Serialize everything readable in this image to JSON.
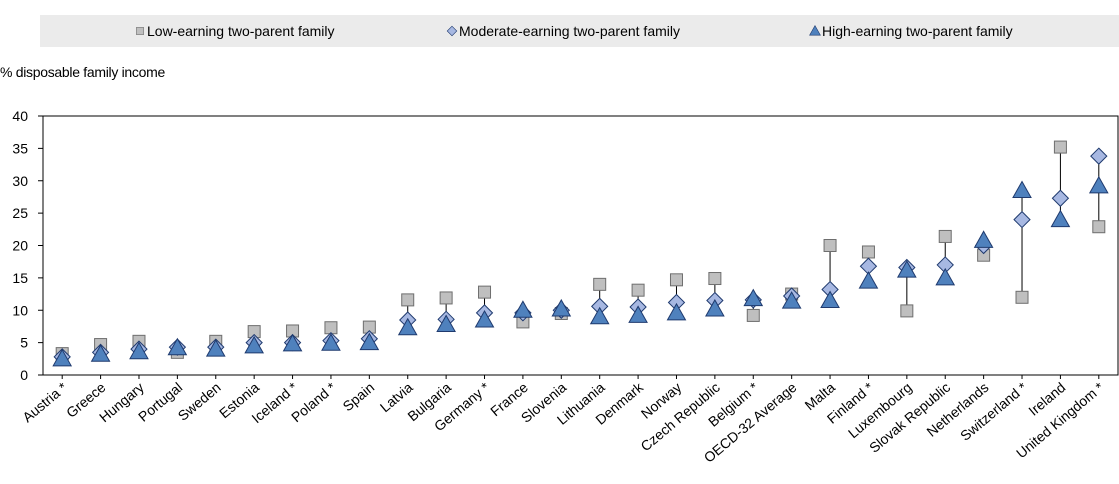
{
  "chart_data": {
    "type": "dot-range",
    "y_label": "% disposable family income",
    "categories": [
      "Austria *",
      "Greece",
      "Hungary",
      "Portugal",
      "Sweden",
      "Estonia",
      "Iceland *",
      "Poland *",
      "Spain",
      "Latvia",
      "Bulgaria",
      "Germany *",
      "France",
      "Slovenia",
      "Lithuania",
      "Denmark",
      "Norway",
      "Czech Republic",
      "Belgium *",
      "OECD-32 Average",
      "Malta",
      "Finland *",
      "Luxembourg",
      "Slovak Republic",
      "Netherlands",
      "Switzerland *",
      "Ireland",
      "United Kingdom *"
    ],
    "series": [
      {
        "name": "Low-earning two-parent family",
        "marker": "square",
        "color": "#bfbfbf",
        "stroke": "#6e6e6e",
        "values": [
          3.3,
          4.7,
          5.2,
          3.5,
          5.2,
          6.7,
          6.8,
          7.3,
          7.4,
          11.6,
          11.9,
          12.8,
          8.2,
          9.5,
          14.0,
          13.1,
          14.7,
          14.9,
          9.2,
          12.5,
          20.0,
          19.0,
          9.9,
          21.4,
          18.5,
          12.0,
          35.2,
          22.9
        ]
      },
      {
        "name": "Moderate-earning two-parent family",
        "marker": "diamond",
        "color": "#a7b8e2",
        "stroke": "#1f3a6e",
        "values": [
          2.8,
          3.5,
          4.0,
          4.3,
          4.3,
          5.0,
          5.0,
          5.3,
          5.6,
          8.5,
          8.6,
          9.6,
          9.6,
          10.0,
          10.6,
          10.5,
          11.2,
          11.5,
          11.6,
          12.2,
          13.2,
          16.8,
          16.6,
          17.0,
          20.0,
          24.0,
          27.3,
          33.8
        ]
      },
      {
        "name": "High-earning two-parent family",
        "marker": "triangle",
        "color": "#4f81bd",
        "stroke": "#1f3a6e",
        "values": [
          2.5,
          3.2,
          3.6,
          4.2,
          4.0,
          4.5,
          4.8,
          4.9,
          5.0,
          7.3,
          7.8,
          8.5,
          10.0,
          10.2,
          9.0,
          9.2,
          9.6,
          10.2,
          11.8,
          11.4,
          11.5,
          14.5,
          16.2,
          15.0,
          20.8,
          28.5,
          24.0,
          29.2
        ]
      }
    ],
    "ylim": [
      0,
      40
    ],
    "yticks": [
      0,
      5,
      10,
      15,
      20,
      25,
      30,
      35,
      40
    ],
    "range_lines": true,
    "legend": "top"
  }
}
